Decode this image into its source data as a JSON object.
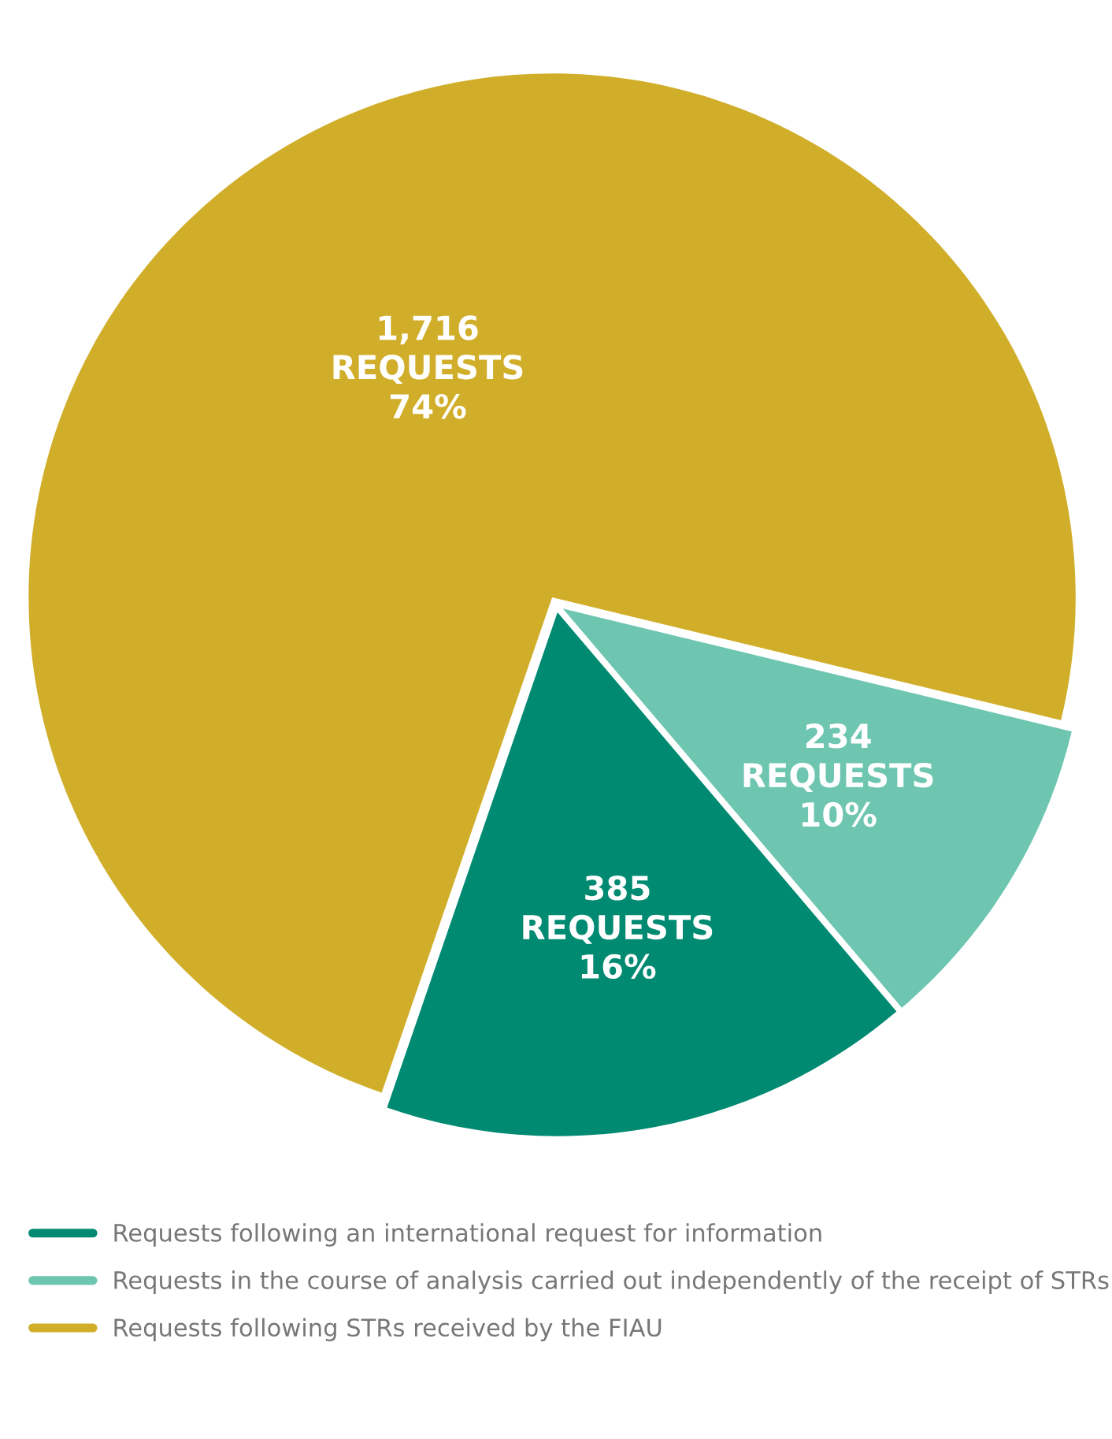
{
  "chart_data": {
    "type": "pie",
    "categories": [
      "Requests following an international request for information",
      "Requests in the course of analysis carried out independently of the receipt of STRs",
      "Requests following STRs received by the FIAU"
    ],
    "values": [
      385,
      234,
      1716
    ],
    "colors": [
      "#008a72",
      "#6ec6b1",
      "#d1ae2a"
    ],
    "value_labels": [
      "385\nREQUESTS\n16%",
      "234\nREQUESTS\n10%",
      "1,716\nREQUESTS\n74%"
    ],
    "legend": "bottom"
  }
}
